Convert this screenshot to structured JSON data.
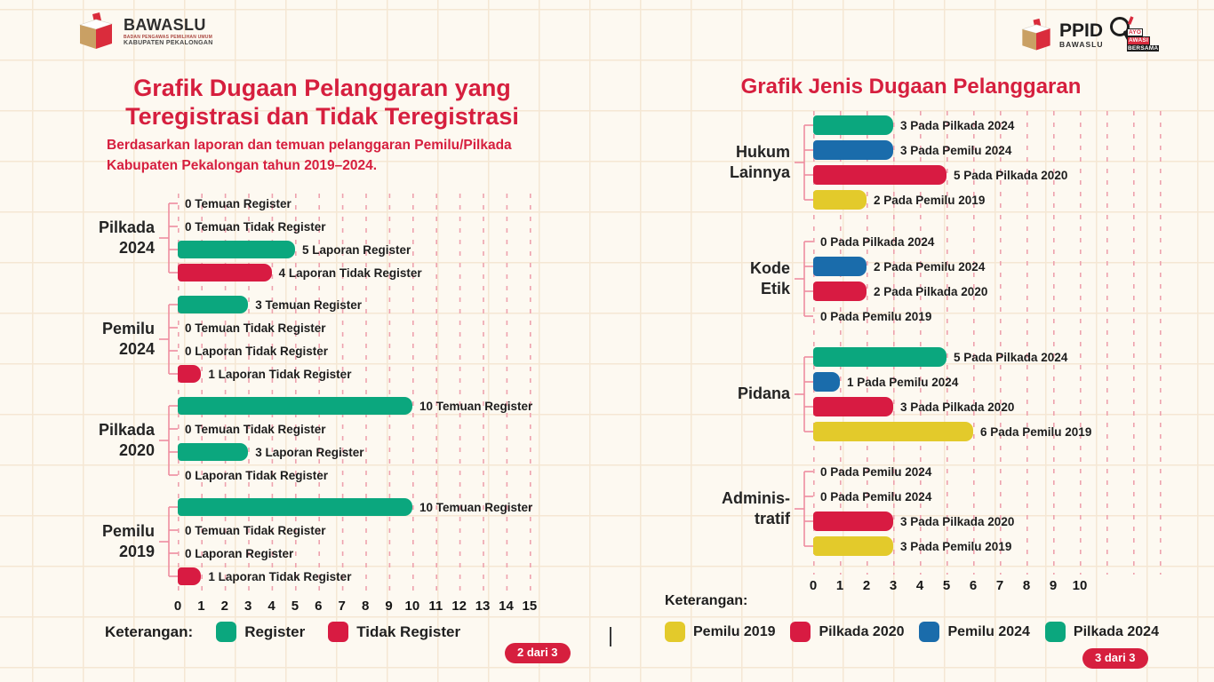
{
  "colors": {
    "green": "#0ba77e",
    "red": "#d81b42",
    "blue": "#1a6cab",
    "yellow": "#e3ca2b",
    "accent_red": "#d61f3e"
  },
  "header": {
    "bawaslu": {
      "name": "BAWASLU",
      "sub1": "BADAN PENGAWAS PEMILIHAN UMUM",
      "sub2": "KABUPATEN PEKALONGAN"
    },
    "ppid": {
      "name": "PPID",
      "sub": "BAWASLU"
    },
    "awasi": {
      "line1": "AYO",
      "line2": "AWASI",
      "line3": "BERSAMA"
    }
  },
  "pager": {
    "left": "2 dari 3",
    "right": "3 dari 3"
  },
  "chart_data": [
    {
      "type": "bar",
      "orientation": "horizontal",
      "title": "Grafik Dugaan Pelanggaran yang\nTeregistrasi dan Tidak Teregistrasi",
      "subtitle": "Berdasarkan laporan dan temuan pelanggaran Pemilu/Pilkada\nKabupaten Pekalongan tahun 2019–2024.",
      "xlim": [
        0,
        15
      ],
      "x_ticks": [
        "0",
        "1",
        "2",
        "3",
        "4",
        "5",
        "6",
        "7",
        "8",
        "9",
        "10",
        "11",
        "12",
        "13",
        "14",
        "15"
      ],
      "legend": {
        "title": "Keterangan:",
        "items": [
          {
            "label": "Register",
            "color": "green"
          },
          {
            "label": "Tidak Register",
            "color": "red"
          }
        ]
      },
      "groups": [
        {
          "category": "Pilkada 2024",
          "category_display": "Pilkada\n2024",
          "rows": [
            {
              "label": "0 Temuan Register",
              "value": 0,
              "color": "green"
            },
            {
              "label": "0 Temuan Tidak Register",
              "value": 0,
              "color": "red"
            },
            {
              "label": "5 Laporan Register",
              "value": 5,
              "color": "green"
            },
            {
              "label": "4 Laporan Tidak Register",
              "value": 4,
              "color": "red"
            }
          ]
        },
        {
          "category": "Pemilu 2024",
          "category_display": "Pemilu\n2024",
          "rows": [
            {
              "label": "3 Temuan Register",
              "value": 3,
              "color": "green"
            },
            {
              "label": "0 Temuan Tidak Register",
              "value": 0,
              "color": "red"
            },
            {
              "label": "0 Laporan Tidak Register",
              "value": 0,
              "color": "red"
            },
            {
              "label": "1 Laporan Tidak Register",
              "value": 1,
              "color": "red"
            }
          ]
        },
        {
          "category": "Pilkada 2020",
          "category_display": "Pilkada\n2020",
          "rows": [
            {
              "label": "10 Temuan Register",
              "value": 10,
              "color": "green"
            },
            {
              "label": "0 Temuan Tidak Register",
              "value": 0,
              "color": "red"
            },
            {
              "label": "3 Laporan Register",
              "value": 3,
              "color": "green"
            },
            {
              "label": "0 Laporan Tidak Register",
              "value": 0,
              "color": "red"
            }
          ]
        },
        {
          "category": "Pemilu 2019",
          "category_display": "Pemilu\n2019",
          "rows": [
            {
              "label": "10 Temuan Register",
              "value": 10,
              "color": "green"
            },
            {
              "label": "0 Temuan Tidak Register",
              "value": 0,
              "color": "red"
            },
            {
              "label": "0 Laporan Register",
              "value": 0,
              "color": "green"
            },
            {
              "label": "1 Laporan Tidak Register",
              "value": 1,
              "color": "red"
            }
          ]
        }
      ]
    },
    {
      "type": "bar",
      "orientation": "horizontal",
      "title": "Grafik Jenis Dugaan Pelanggaran",
      "xlim": [
        0,
        10
      ],
      "x_ticks": [
        "0",
        "1",
        "2",
        "3",
        "4",
        "5",
        "6",
        "7",
        "8",
        "9",
        "10"
      ],
      "legend": {
        "title": "Keterangan:",
        "items": [
          {
            "label": "Pemilu 2019",
            "color": "yellow"
          },
          {
            "label": "Pilkada 2020",
            "color": "red"
          },
          {
            "label": "Pemilu 2024",
            "color": "blue"
          },
          {
            "label": "Pilkada 2024",
            "color": "green"
          }
        ]
      },
      "groups": [
        {
          "category": "Hukum Lainnya",
          "category_display": "Hukum\nLainnya",
          "rows": [
            {
              "label": "3 Pada Pilkada 2024",
              "value": 3,
              "color": "green"
            },
            {
              "label": "3 Pada Pemilu 2024",
              "value": 3,
              "color": "blue"
            },
            {
              "label": "5 Pada Pilkada 2020",
              "value": 5,
              "color": "red"
            },
            {
              "label": "2 Pada Pemilu 2019",
              "value": 2,
              "color": "yellow"
            }
          ]
        },
        {
          "category": "Kode Etik",
          "category_display": "Kode\nEtik",
          "rows": [
            {
              "label": "0 Pada Pilkada 2024",
              "value": 0,
              "color": "green"
            },
            {
              "label": "2 Pada Pemilu 2024",
              "value": 2,
              "color": "blue"
            },
            {
              "label": "2 Pada Pilkada 2020",
              "value": 2,
              "color": "red"
            },
            {
              "label": "0 Pada Pemilu 2019",
              "value": 0,
              "color": "yellow"
            }
          ]
        },
        {
          "category": "Pidana",
          "category_display": "Pidana",
          "rows": [
            {
              "label": "5 Pada Pilkada 2024",
              "value": 5,
              "color": "green"
            },
            {
              "label": "1 Pada Pemilu 2024",
              "value": 1,
              "color": "blue"
            },
            {
              "label": "3 Pada Pilkada 2020",
              "value": 3,
              "color": "red"
            },
            {
              "label": "6 Pada Pemilu 2019",
              "value": 6,
              "color": "yellow"
            }
          ]
        },
        {
          "category": "Administratif",
          "category_display": "Adminis-\ntratif",
          "rows": [
            {
              "label": "0 Pada Pemilu 2024",
              "value": 0,
              "color": "green"
            },
            {
              "label": "0 Pada Pemilu 2024",
              "value": 0,
              "color": "blue"
            },
            {
              "label": "3 Pada Pilkada 2020",
              "value": 3,
              "color": "red"
            },
            {
              "label": "3 Pada Pemilu 2019",
              "value": 3,
              "color": "yellow"
            }
          ]
        }
      ]
    }
  ]
}
